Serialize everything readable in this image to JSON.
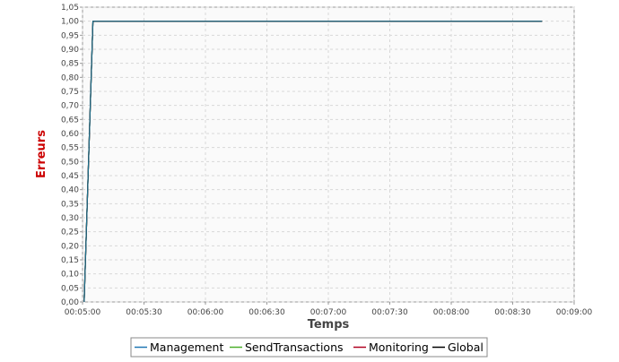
{
  "chart_data": {
    "type": "line",
    "title": "",
    "xlabel": "Temps",
    "ylabel": "Erreurs",
    "xlim_seconds": [
      0,
      240
    ],
    "ylim": [
      0,
      1.05
    ],
    "x_tick_labels": [
      "00:05:00",
      "00:05:30",
      "00:06:00",
      "00:06:30",
      "00:07:00",
      "00:07:30",
      "00:08:00",
      "00:08:30",
      "00:09:00"
    ],
    "x_tick_values_seconds": [
      0,
      30,
      60,
      90,
      120,
      150,
      180,
      210,
      240
    ],
    "y_tick_labels": [
      "0,00",
      "0,05",
      "0,10",
      "0,15",
      "0,20",
      "0,25",
      "0,30",
      "0,35",
      "0,40",
      "0,45",
      "0,50",
      "0,55",
      "0,60",
      "0,65",
      "0,70",
      "0,75",
      "0,80",
      "0,85",
      "0,90",
      "0,95",
      "1,00",
      "1,05"
    ],
    "y_tick_values": [
      0,
      0.05,
      0.1,
      0.15,
      0.2,
      0.25,
      0.3,
      0.35,
      0.4,
      0.45,
      0.5,
      0.55,
      0.6,
      0.65,
      0.7,
      0.75,
      0.8,
      0.85,
      0.9,
      0.95,
      1.0,
      1.05
    ],
    "grid": true,
    "legend_position": "bottom-center",
    "series": [
      {
        "name": "Management",
        "color": "#1f77b4",
        "x_seconds": [
          0.8,
          5.1,
          10,
          60,
          120,
          180,
          224.3
        ],
        "values": [
          0,
          1,
          1,
          1,
          1,
          1,
          1
        ]
      },
      {
        "name": "SendTransactions",
        "color": "#4caf2a",
        "x_seconds": [
          0.8,
          5.1,
          10,
          60,
          120,
          180,
          224.3
        ],
        "values": [
          0,
          1,
          1,
          1,
          1,
          1,
          1
        ]
      },
      {
        "name": "Monitoring",
        "color": "#b00020",
        "x_seconds": [
          0.8,
          5.1,
          10,
          60,
          120,
          180,
          224.3
        ],
        "values": [
          0,
          1,
          1,
          1,
          1,
          1,
          1
        ]
      },
      {
        "name": "Global",
        "color": "#000000",
        "x_seconds": [
          0.8,
          5.1,
          10,
          60,
          120,
          180,
          224.3
        ],
        "values": [
          0,
          1,
          1,
          1,
          1,
          1,
          1
        ]
      }
    ]
  },
  "colors": {
    "ylabel": "#cc0000",
    "xlabel": "#444444",
    "grid": "#d8d8d8",
    "plot_bg": "#fafafa",
    "axis": "#999999",
    "visible_line": "#1f6f8b"
  }
}
